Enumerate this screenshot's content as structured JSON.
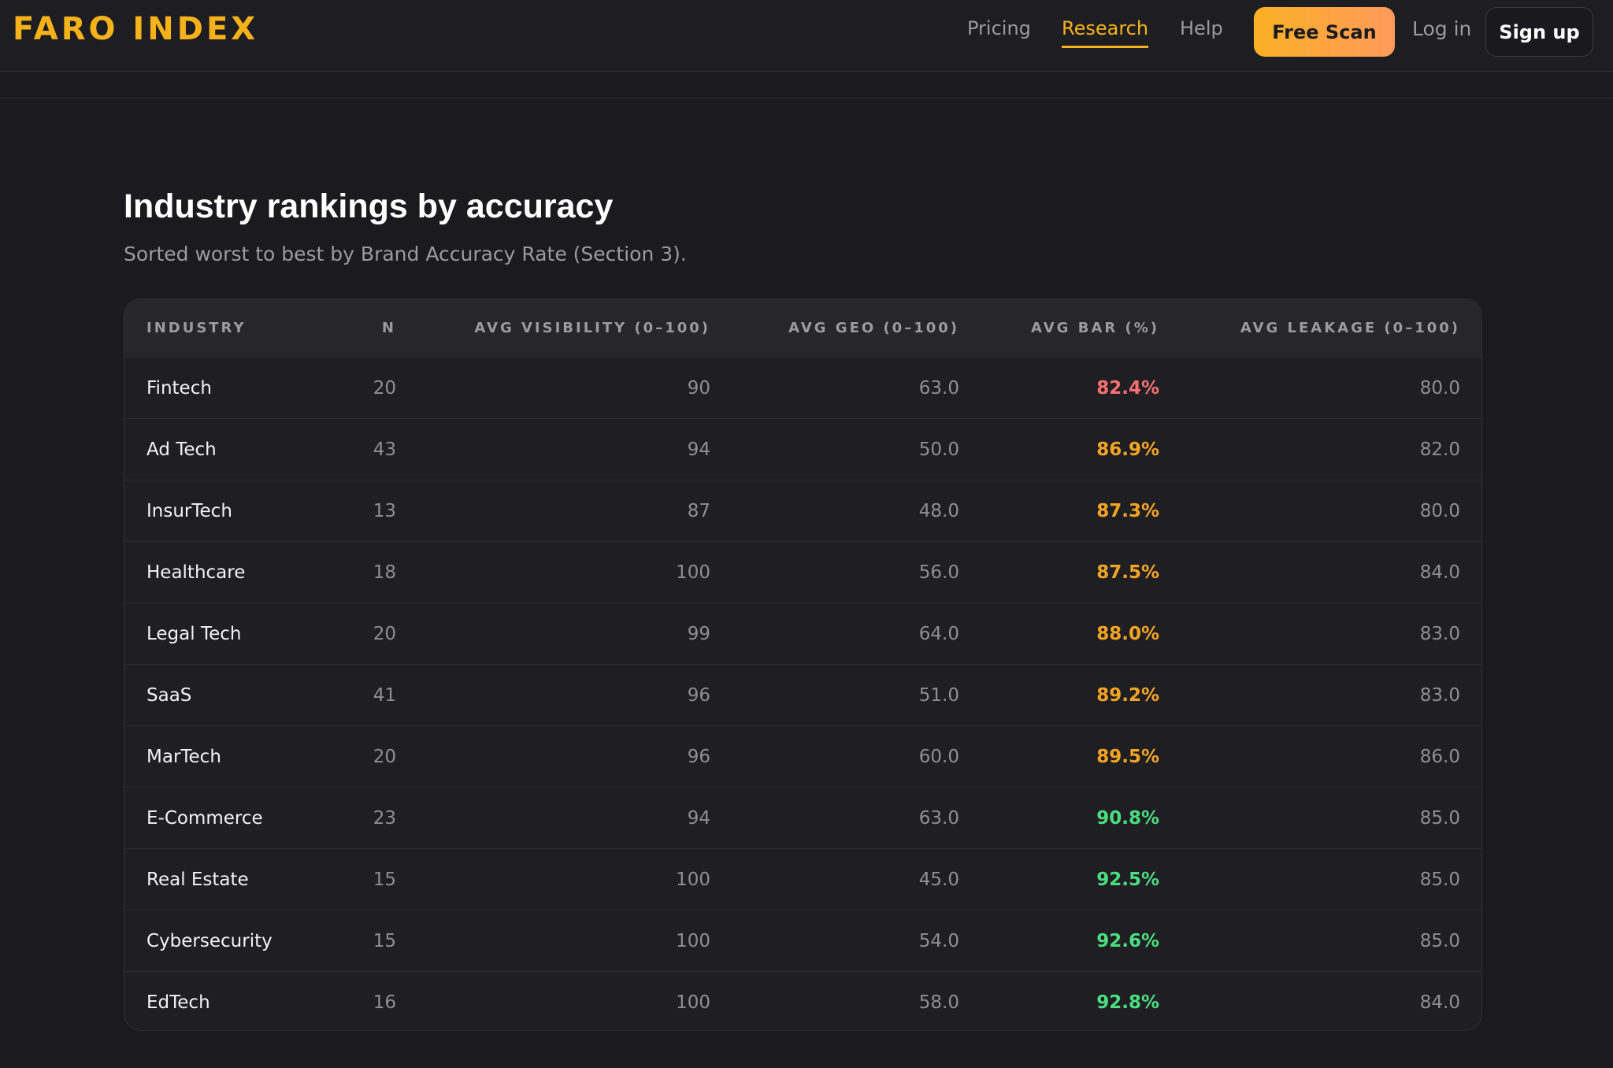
{
  "header": {
    "logo": "FARO INDEX",
    "nav": [
      "Pricing",
      "Research",
      "Help"
    ],
    "cta": "Free Scan",
    "login": "Log in",
    "signup": "Sign up"
  },
  "section": {
    "title": "Industry rankings by accuracy",
    "subtitle": "Sorted worst to best by Brand Accuracy Rate (Section 3)."
  },
  "table": {
    "columns": [
      "INDUSTRY",
      "N",
      "AVG VISIBILITY (0–100)",
      "AVG GEO (0–100)",
      "AVG BAR (%)",
      "AVG LEAKAGE (0–100)"
    ],
    "rows": [
      [
        "Fintech",
        "20",
        "90",
        "63.0",
        "82.4%",
        "80.0"
      ],
      [
        "Ad Tech",
        "43",
        "94",
        "50.0",
        "86.9%",
        "82.0"
      ],
      [
        "InsurTech",
        "13",
        "87",
        "48.0",
        "87.3%",
        "80.0"
      ],
      [
        "Healthcare",
        "18",
        "100",
        "56.0",
        "87.5%",
        "84.0"
      ],
      [
        "Legal Tech",
        "20",
        "99",
        "64.0",
        "88.0%",
        "83.0"
      ],
      [
        "SaaS",
        "41",
        "96",
        "51.0",
        "89.2%",
        "83.0"
      ],
      [
        "MarTech",
        "20",
        "96",
        "60.0",
        "89.5%",
        "86.0"
      ],
      [
        "E-Commerce",
        "23",
        "94",
        "63.0",
        "90.8%",
        "85.0"
      ],
      [
        "Real Estate",
        "15",
        "100",
        "45.0",
        "92.5%",
        "85.0"
      ],
      [
        "Cybersecurity",
        "15",
        "100",
        "54.0",
        "92.6%",
        "85.0"
      ],
      [
        "EdTech",
        "16",
        "100",
        "58.0",
        "92.8%",
        "84.0"
      ]
    ]
  }
}
